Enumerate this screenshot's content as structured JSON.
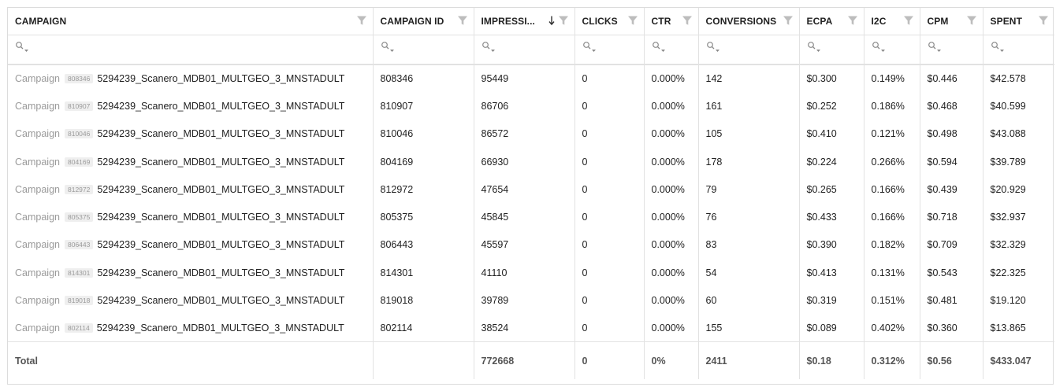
{
  "columns": [
    {
      "label": "CAMPAIGN",
      "sort_icon": false
    },
    {
      "label": "CAMPAIGN ID",
      "sort_icon": false
    },
    {
      "label": "IMPRESSI...",
      "sort_icon": true
    },
    {
      "label": "CLICKS",
      "sort_icon": false
    },
    {
      "label": "CTR",
      "sort_icon": false
    },
    {
      "label": "CONVERSIONS",
      "sort_icon": false
    },
    {
      "label": "ECPA",
      "sort_icon": false
    },
    {
      "label": "I2C",
      "sort_icon": false
    },
    {
      "label": "CPM",
      "sort_icon": false
    },
    {
      "label": "SPENT",
      "sort_icon": false
    }
  ],
  "icons": {
    "filter": "funnel-filter-icon",
    "search_filter": "magnifier-dropdown-icon",
    "sort": "arrow-down-sort-icon"
  },
  "colors": {
    "filter_icon": "#bdbdbd",
    "prefix_text": "#9a9a9a",
    "badge_bg": "#efefef",
    "border": "#e2e2e2"
  },
  "campaign_prefix": "Campaign",
  "rows": [
    {
      "badge": "808346",
      "name": "5294239_Scanero_MDB01_MULTGEO_3_MNSTADULT",
      "id": "808346",
      "impressions": "95449",
      "clicks": "0",
      "ctr": "0.000%",
      "conversions": "142",
      "ecpa": "$0.300",
      "i2c": "0.149%",
      "cpm": "$0.446",
      "spent": "$42.578"
    },
    {
      "badge": "810907",
      "name": "5294239_Scanero_MDB01_MULTGEO_3_MNSTADULT",
      "id": "810907",
      "impressions": "86706",
      "clicks": "0",
      "ctr": "0.000%",
      "conversions": "161",
      "ecpa": "$0.252",
      "i2c": "0.186%",
      "cpm": "$0.468",
      "spent": "$40.599"
    },
    {
      "badge": "810046",
      "name": "5294239_Scanero_MDB01_MULTGEO_3_MNSTADULT",
      "id": "810046",
      "impressions": "86572",
      "clicks": "0",
      "ctr": "0.000%",
      "conversions": "105",
      "ecpa": "$0.410",
      "i2c": "0.121%",
      "cpm": "$0.498",
      "spent": "$43.088"
    },
    {
      "badge": "804169",
      "name": "5294239_Scanero_MDB01_MULTGEO_3_MNSTADULT",
      "id": "804169",
      "impressions": "66930",
      "clicks": "0",
      "ctr": "0.000%",
      "conversions": "178",
      "ecpa": "$0.224",
      "i2c": "0.266%",
      "cpm": "$0.594",
      "spent": "$39.789"
    },
    {
      "badge": "812972",
      "name": "5294239_Scanero_MDB01_MULTGEO_3_MNSTADULT",
      "id": "812972",
      "impressions": "47654",
      "clicks": "0",
      "ctr": "0.000%",
      "conversions": "79",
      "ecpa": "$0.265",
      "i2c": "0.166%",
      "cpm": "$0.439",
      "spent": "$20.929"
    },
    {
      "badge": "805375",
      "name": "5294239_Scanero_MDB01_MULTGEO_3_MNSTADULT",
      "id": "805375",
      "impressions": "45845",
      "clicks": "0",
      "ctr": "0.000%",
      "conversions": "76",
      "ecpa": "$0.433",
      "i2c": "0.166%",
      "cpm": "$0.718",
      "spent": "$32.937"
    },
    {
      "badge": "806443",
      "name": "5294239_Scanero_MDB01_MULTGEO_3_MNSTADULT",
      "id": "806443",
      "impressions": "45597",
      "clicks": "0",
      "ctr": "0.000%",
      "conversions": "83",
      "ecpa": "$0.390",
      "i2c": "0.182%",
      "cpm": "$0.709",
      "spent": "$32.329"
    },
    {
      "badge": "814301",
      "name": "5294239_Scanero_MDB01_MULTGEO_3_MNSTADULT",
      "id": "814301",
      "impressions": "41110",
      "clicks": "0",
      "ctr": "0.000%",
      "conversions": "54",
      "ecpa": "$0.413",
      "i2c": "0.131%",
      "cpm": "$0.543",
      "spent": "$22.325"
    },
    {
      "badge": "819018",
      "name": "5294239_Scanero_MDB01_MULTGEO_3_MNSTADULT",
      "id": "819018",
      "impressions": "39789",
      "clicks": "0",
      "ctr": "0.000%",
      "conversions": "60",
      "ecpa": "$0.319",
      "i2c": "0.151%",
      "cpm": "$0.481",
      "spent": "$19.120"
    },
    {
      "badge": "802114",
      "name": "5294239_Scanero_MDB01_MULTGEO_3_MNSTADULT",
      "id": "802114",
      "impressions": "38524",
      "clicks": "0",
      "ctr": "0.000%",
      "conversions": "155",
      "ecpa": "$0.089",
      "i2c": "0.402%",
      "cpm": "$0.360",
      "spent": "$13.865"
    }
  ],
  "total": {
    "label": "Total",
    "id": "",
    "impressions": "772668",
    "clicks": "0",
    "ctr": "0%",
    "conversions": "2411",
    "ecpa": "$0.18",
    "i2c": "0.312%",
    "cpm": "$0.56",
    "spent": "$433.047"
  }
}
